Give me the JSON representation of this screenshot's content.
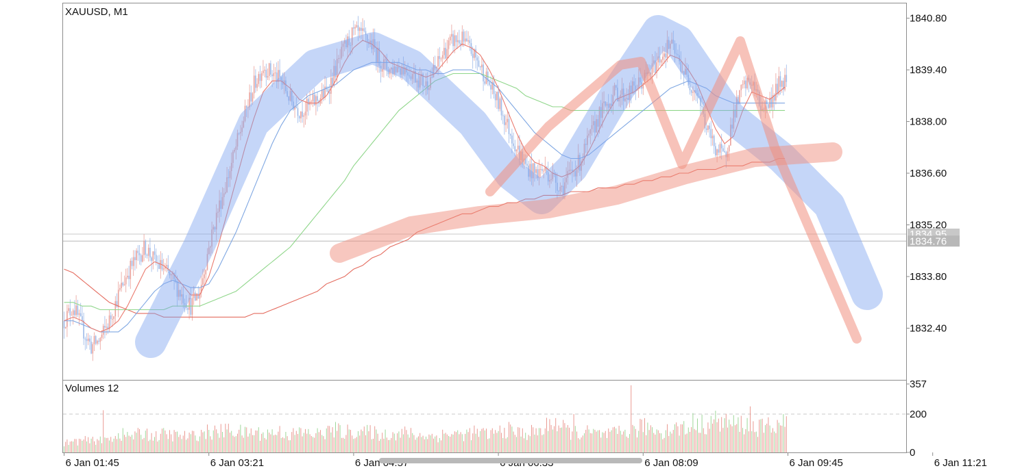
{
  "chart_data": {
    "type": "candlestick",
    "symbol_title": "XAUUSD, M1",
    "price_axis": {
      "ylim": [
        1831.0,
        1841.2
      ],
      "ticks": [
        1840.8,
        1839.4,
        1838.0,
        1836.6,
        1835.2,
        1833.8,
        1832.4
      ],
      "tick_labels": [
        "1840.80",
        "1839.40",
        "1838.00",
        "1836.60",
        "1835.20",
        "1833.80",
        "1832.40"
      ],
      "price_lines": [
        {
          "value": 1834.95,
          "label": "1834.95",
          "color": "#c8c8c8"
        },
        {
          "value": 1834.76,
          "label": "1834.76",
          "color": "#b8b8b8"
        }
      ]
    },
    "time_axis": {
      "labels": [
        "6 Jan 01:45",
        "6 Jan 03:21",
        "6 Jan 04:57",
        "6 Jan 06:33",
        "6 Jan 08:09",
        "6 Jan 09:45",
        "6 Jan 11:21"
      ],
      "bar_count": 480,
      "bars_per_label": 96
    },
    "close_series": {
      "name": "",
      "step_bars": 6,
      "values": [
        1832.6,
        1833.0,
        1832.4,
        1831.9,
        1832.1,
        1832.6,
        1833.3,
        1833.9,
        1834.3,
        1834.6,
        1834.2,
        1834.0,
        1833.7,
        1833.3,
        1833.0,
        1833.4,
        1834.6,
        1835.6,
        1836.4,
        1837.3,
        1838.2,
        1839.0,
        1839.5,
        1839.3,
        1839.1,
        1838.6,
        1838.3,
        1838.4,
        1838.6,
        1838.8,
        1839.4,
        1840.0,
        1840.4,
        1840.3,
        1840.1,
        1839.6,
        1839.4,
        1839.5,
        1839.4,
        1839.2,
        1839.0,
        1839.4,
        1839.9,
        1840.2,
        1840.2,
        1839.9,
        1839.5,
        1839.0,
        1838.5,
        1837.9,
        1837.3,
        1836.8,
        1836.6,
        1836.7,
        1836.5,
        1836.2,
        1836.6,
        1836.9,
        1837.5,
        1838.1,
        1838.5,
        1838.8,
        1838.7,
        1838.9,
        1839.1,
        1839.4,
        1839.8,
        1840.1,
        1839.6,
        1839.1,
        1838.8,
        1837.8,
        1837.3,
        1837.0,
        1838.2,
        1838.9,
        1839.1,
        1838.4,
        1838.5,
        1839.0,
        1839.2,
        1839.6,
        1839.1,
        1838.3,
        1837.8,
        1837.6,
        1837.1,
        1836.2,
        1835.4,
        1834.8
      ],
      "ma_fast_values": [
        1832.6,
        1832.7,
        1832.6,
        1832.4,
        1832.3,
        1832.4,
        1832.6,
        1833.0,
        1833.5,
        1834.0,
        1834.2,
        1834.1,
        1833.9,
        1833.6,
        1833.3,
        1833.3,
        1833.8,
        1834.6,
        1835.5,
        1836.4,
        1837.3,
        1838.1,
        1838.8,
        1839.1,
        1839.1,
        1838.9,
        1838.6,
        1838.5,
        1838.5,
        1838.7,
        1839.1,
        1839.6,
        1840.0,
        1840.2,
        1840.1,
        1839.9,
        1839.6,
        1839.5,
        1839.4,
        1839.3,
        1839.2,
        1839.3,
        1839.6,
        1839.9,
        1840.1,
        1840.0,
        1839.8,
        1839.4,
        1838.9,
        1838.3,
        1837.7,
        1837.2,
        1836.9,
        1836.8,
        1836.6,
        1836.5,
        1836.6,
        1836.8,
        1837.2,
        1837.7,
        1838.2,
        1838.6,
        1838.7,
        1838.8,
        1839.0,
        1839.2,
        1839.5,
        1839.8,
        1839.7,
        1839.4,
        1839.0,
        1838.4,
        1837.8,
        1837.4,
        1837.6,
        1838.3,
        1838.8,
        1838.7,
        1838.6,
        1838.8,
        1839.0,
        1839.4,
        1839.3,
        1838.8,
        1838.2,
        1837.9,
        1837.5,
        1836.8,
        1836.1,
        1835.4
      ],
      "ma_mid_values": [
        1832.6,
        1832.6,
        1832.5,
        1832.4,
        1832.3,
        1832.3,
        1832.3,
        1832.5,
        1832.8,
        1833.1,
        1833.4,
        1833.6,
        1833.7,
        1833.6,
        1833.5,
        1833.5,
        1833.6,
        1834.0,
        1834.5,
        1835.0,
        1835.6,
        1836.2,
        1836.8,
        1837.4,
        1837.9,
        1838.3,
        1838.5,
        1838.7,
        1838.8,
        1838.9,
        1839.0,
        1839.2,
        1839.4,
        1839.5,
        1839.6,
        1839.6,
        1839.6,
        1839.6,
        1839.5,
        1839.4,
        1839.4,
        1839.3,
        1839.3,
        1839.4,
        1839.4,
        1839.4,
        1839.3,
        1839.1,
        1838.9,
        1838.6,
        1838.3,
        1838.0,
        1837.7,
        1837.5,
        1837.3,
        1837.1,
        1837.0,
        1837.0,
        1837.1,
        1837.3,
        1837.5,
        1837.7,
        1837.9,
        1838.1,
        1838.3,
        1838.5,
        1838.7,
        1838.9,
        1839.0,
        1839.1,
        1839.0,
        1838.9,
        1838.7,
        1838.6,
        1838.5,
        1838.5,
        1838.5,
        1838.5,
        1838.5,
        1838.5,
        1838.5,
        1838.6,
        1838.6,
        1838.6,
        1838.5,
        1838.4,
        1838.3,
        1838.1,
        1837.9,
        1837.5
      ],
      "ma_slow_values": [
        1833.1,
        1833.1,
        1833.0,
        1833.0,
        1832.9,
        1832.9,
        1832.9,
        1832.9,
        1832.9,
        1832.9,
        1832.9,
        1832.9,
        1833.0,
        1833.0,
        1833.0,
        1833.0,
        1833.1,
        1833.2,
        1833.3,
        1833.4,
        1833.6,
        1833.8,
        1834.0,
        1834.2,
        1834.4,
        1834.6,
        1834.9,
        1835.2,
        1835.5,
        1835.8,
        1836.1,
        1836.4,
        1836.8,
        1837.1,
        1837.4,
        1837.7,
        1838.0,
        1838.3,
        1838.5,
        1838.7,
        1838.9,
        1839.1,
        1839.2,
        1839.3,
        1839.3,
        1839.3,
        1839.3,
        1839.2,
        1839.1,
        1839.0,
        1838.9,
        1838.7,
        1838.6,
        1838.5,
        1838.4,
        1838.4,
        1838.3,
        1838.3,
        1838.3,
        1838.3,
        1838.3,
        1838.3,
        1838.3,
        1838.3,
        1838.3,
        1838.3,
        1838.3,
        1838.3,
        1838.3,
        1838.3,
        1838.3,
        1838.3,
        1838.3,
        1838.3,
        1838.3,
        1838.3,
        1838.3,
        1838.3,
        1838.3,
        1838.3,
        1838.3,
        1838.3,
        1838.3,
        1838.3,
        1838.3,
        1838.3,
        1838.3,
        1838.2,
        1838.2,
        1838.1
      ],
      "ma_long_values": [
        1834.0,
        1833.9,
        1833.7,
        1833.5,
        1833.3,
        1833.1,
        1833.0,
        1832.9,
        1832.8,
        1832.8,
        1832.8,
        1832.7,
        1832.7,
        1832.7,
        1832.7,
        1832.7,
        1832.7,
        1832.7,
        1832.7,
        1832.7,
        1832.7,
        1832.8,
        1832.8,
        1832.9,
        1833.0,
        1833.1,
        1833.2,
        1833.3,
        1833.4,
        1833.6,
        1833.7,
        1833.8,
        1834.0,
        1834.1,
        1834.3,
        1834.4,
        1834.6,
        1834.7,
        1834.8,
        1835.0,
        1835.1,
        1835.2,
        1835.3,
        1835.4,
        1835.5,
        1835.5,
        1835.6,
        1835.7,
        1835.7,
        1835.8,
        1835.8,
        1835.9,
        1835.9,
        1836.0,
        1836.0,
        1836.0,
        1836.1,
        1836.1,
        1836.1,
        1836.2,
        1836.2,
        1836.2,
        1836.3,
        1836.3,
        1836.4,
        1836.4,
        1836.5,
        1836.5,
        1836.6,
        1836.6,
        1836.7,
        1836.7,
        1836.7,
        1836.8,
        1836.8,
        1836.8,
        1836.9,
        1836.9,
        1836.9,
        1837.0,
        1837.0,
        1837.0,
        1837.1,
        1837.1,
        1837.1,
        1837.1,
        1837.2,
        1837.2,
        1837.2,
        1837.1
      ]
    },
    "volumes": {
      "title": "Volumes 12",
      "ylim": [
        0,
        357
      ],
      "ticks": [
        357,
        200,
        0
      ],
      "tick_labels": [
        "357",
        "200",
        "0"
      ],
      "reference_level": 200,
      "step_bars": 6,
      "values": [
        55,
        60,
        70,
        65,
        80,
        75,
        110,
        95,
        100,
        115,
        90,
        105,
        100,
        95,
        90,
        110,
        120,
        115,
        130,
        125,
        110,
        120,
        105,
        115,
        120,
        100,
        115,
        110,
        105,
        120,
        130,
        115,
        125,
        110,
        120,
        100,
        110,
        105,
        115,
        95,
        100,
        90,
        105,
        110,
        100,
        115,
        110,
        105,
        120,
        130,
        115,
        110,
        120,
        125,
        190,
        140,
        120,
        110,
        115,
        105,
        100,
        110,
        120,
        125,
        150,
        140,
        120,
        135,
        145,
        130,
        150,
        170,
        180,
        175,
        160,
        165,
        150,
        140,
        155,
        165,
        170,
        160,
        175,
        180,
        170,
        185,
        190,
        180,
        170,
        155
      ],
      "spikes": [
        {
          "bar": 26,
          "value": 220
        },
        {
          "bar": 455,
          "value": 240
        },
        {
          "bar": 376,
          "value": 350
        },
        {
          "bar": 338,
          "value": 200
        },
        {
          "bar": 417,
          "value": 205
        }
      ]
    },
    "annotations": [
      {
        "shape": "blue-arc-zigzag",
        "color": "#7fa5f0"
      },
      {
        "shape": "red-trend-band",
        "color": "#f08f80"
      },
      {
        "shape": "red-zigzag",
        "color": "#f08f80"
      }
    ],
    "colors": {
      "bull": "#e9a09a",
      "bear": "#9cb9e8",
      "ma_fast": "#ea7a6e",
      "ma_mid": "#7fa7e2",
      "ma_slow": "#8fd68a",
      "ma_long": "#e46b5e",
      "volume_up": "#ea9a92",
      "volume_down": "#9ed79a"
    },
    "grid": false
  }
}
